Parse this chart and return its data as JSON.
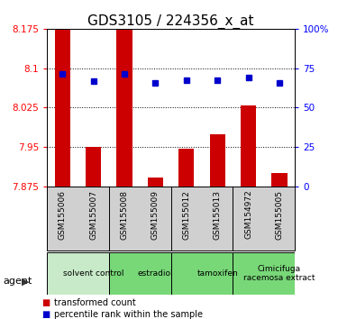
{
  "title": "GDS3105 / 224356_x_at",
  "samples": [
    "GSM155006",
    "GSM155007",
    "GSM155008",
    "GSM155009",
    "GSM155012",
    "GSM155013",
    "GSM154972",
    "GSM155005"
  ],
  "red_values": [
    8.175,
    7.95,
    8.175,
    7.892,
    7.947,
    7.975,
    8.03,
    7.9
  ],
  "blue_values": [
    8.09,
    8.075,
    8.09,
    8.072,
    8.077,
    8.077,
    8.082,
    8.072
  ],
  "ylim_left": [
    7.875,
    8.175
  ],
  "ylim_right": [
    0,
    100
  ],
  "yticks_left": [
    7.875,
    7.95,
    8.025,
    8.1,
    8.175
  ],
  "yticks_right": [
    0,
    25,
    50,
    75,
    100
  ],
  "ytick_labels_left": [
    "7.875",
    "7.95",
    "8.025",
    "8.1",
    "8.175"
  ],
  "ytick_labels_right": [
    "0",
    "25",
    "50",
    "75",
    "100%"
  ],
  "baseline": 7.875,
  "groups": [
    {
      "label": "solvent control",
      "start": 0,
      "end": 2,
      "color": "#c8eac8"
    },
    {
      "label": "estradiol",
      "start": 2,
      "end": 4,
      "color": "#78d878"
    },
    {
      "label": "tamoxifen",
      "start": 4,
      "end": 6,
      "color": "#78d878"
    },
    {
      "label": "Cimicifuga\nracemosa extract",
      "start": 6,
      "end": 8,
      "color": "#78d878"
    }
  ],
  "sample_bg_color": "#d0d0d0",
  "bar_color": "#cc0000",
  "dot_color": "#0000cc",
  "bar_width": 0.5,
  "title_fontsize": 11,
  "tick_fontsize": 7.5,
  "sample_fontsize": 6.5,
  "group_fontsize": 6.5,
  "legend_fontsize": 7,
  "group_boundaries": [
    0,
    2,
    4,
    6,
    8
  ]
}
